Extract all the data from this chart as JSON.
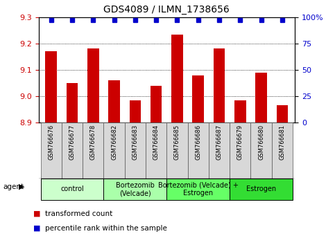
{
  "title": "GDS4089 / ILMN_1738656",
  "samples": [
    "GSM766676",
    "GSM766677",
    "GSM766678",
    "GSM766682",
    "GSM766683",
    "GSM766684",
    "GSM766685",
    "GSM766686",
    "GSM766687",
    "GSM766679",
    "GSM766680",
    "GSM766681"
  ],
  "bar_values": [
    9.17,
    9.05,
    9.18,
    9.06,
    8.985,
    9.04,
    9.235,
    9.08,
    9.18,
    8.985,
    9.09,
    8.965
  ],
  "percentile_values": [
    97,
    97,
    97,
    97,
    97,
    97,
    97,
    97,
    97,
    97,
    97,
    97
  ],
  "bar_color": "#cc0000",
  "percentile_color": "#0000cc",
  "ylim_left": [
    8.9,
    9.3
  ],
  "ylim_right": [
    0,
    100
  ],
  "yticks_left": [
    8.9,
    9.0,
    9.1,
    9.2,
    9.3
  ],
  "yticks_right": [
    0,
    25,
    50,
    75,
    100
  ],
  "ytick_labels_right": [
    "0",
    "25",
    "50",
    "75",
    "100%"
  ],
  "groups": [
    {
      "label": "control",
      "start": 0,
      "end": 3,
      "color": "#ccffcc"
    },
    {
      "label": "Bortezomib\n(Velcade)",
      "start": 3,
      "end": 6,
      "color": "#aaffaa"
    },
    {
      "label": "Bortezomib (Velcade) +\nEstrogen",
      "start": 6,
      "end": 9,
      "color": "#66ff66"
    },
    {
      "label": "Estrogen",
      "start": 9,
      "end": 12,
      "color": "#33dd33"
    }
  ],
  "legend_bar_label": "transformed count",
  "legend_pct_label": "percentile rank within the sample",
  "agent_label": "agent",
  "bar_color_legend": "#cc0000",
  "pct_color_legend": "#0000cc",
  "tick_color_left": "#cc0000",
  "tick_color_right": "#0000cc",
  "cell_color": "#d8d8d8",
  "cell_border": "#555555"
}
